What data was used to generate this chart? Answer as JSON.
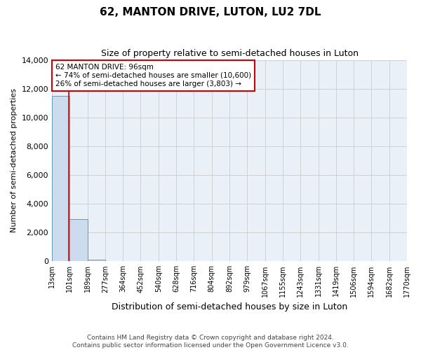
{
  "title": "62, MANTON DRIVE, LUTON, LU2 7DL",
  "subtitle": "Size of property relative to semi-detached houses in Luton",
  "xlabel": "Distribution of semi-detached houses by size in Luton",
  "ylabel": "Number of semi-detached properties",
  "bar_color": "#ccdcee",
  "bar_edge_color": "#6699bb",
  "property_line_color": "#cc0000",
  "annotation_box_color": "#cc0000",
  "annotation_text": "62 MANTON DRIVE: 96sqm\n← 74% of semi-detached houses are smaller (10,600)\n26% of semi-detached houses are larger (3,803) →",
  "property_size": 96,
  "bin_edges": [
    13,
    101,
    189,
    277,
    364,
    452,
    540,
    628,
    716,
    804,
    892,
    979,
    1067,
    1155,
    1243,
    1331,
    1419,
    1506,
    1594,
    1682,
    1770
  ],
  "bin_labels": [
    "13sqm",
    "101sqm",
    "189sqm",
    "277sqm",
    "364sqm",
    "452sqm",
    "540sqm",
    "628sqm",
    "716sqm",
    "804sqm",
    "892sqm",
    "979sqm",
    "1067sqm",
    "1155sqm",
    "1243sqm",
    "1331sqm",
    "1419sqm",
    "1506sqm",
    "1594sqm",
    "1682sqm",
    "1770sqm"
  ],
  "bar_heights": [
    11500,
    2950,
    130,
    20,
    5,
    2,
    1,
    1,
    0,
    0,
    0,
    0,
    0,
    0,
    0,
    0,
    0,
    0,
    0,
    0
  ],
  "ylim": [
    0,
    14000
  ],
  "yticks": [
    0,
    2000,
    4000,
    6000,
    8000,
    10000,
    12000,
    14000
  ],
  "footer_text": "Contains HM Land Registry data © Crown copyright and database right 2024.\nContains public sector information licensed under the Open Government Licence v3.0.",
  "grid_color": "#cccccc",
  "background_color": "#eaf0f8"
}
